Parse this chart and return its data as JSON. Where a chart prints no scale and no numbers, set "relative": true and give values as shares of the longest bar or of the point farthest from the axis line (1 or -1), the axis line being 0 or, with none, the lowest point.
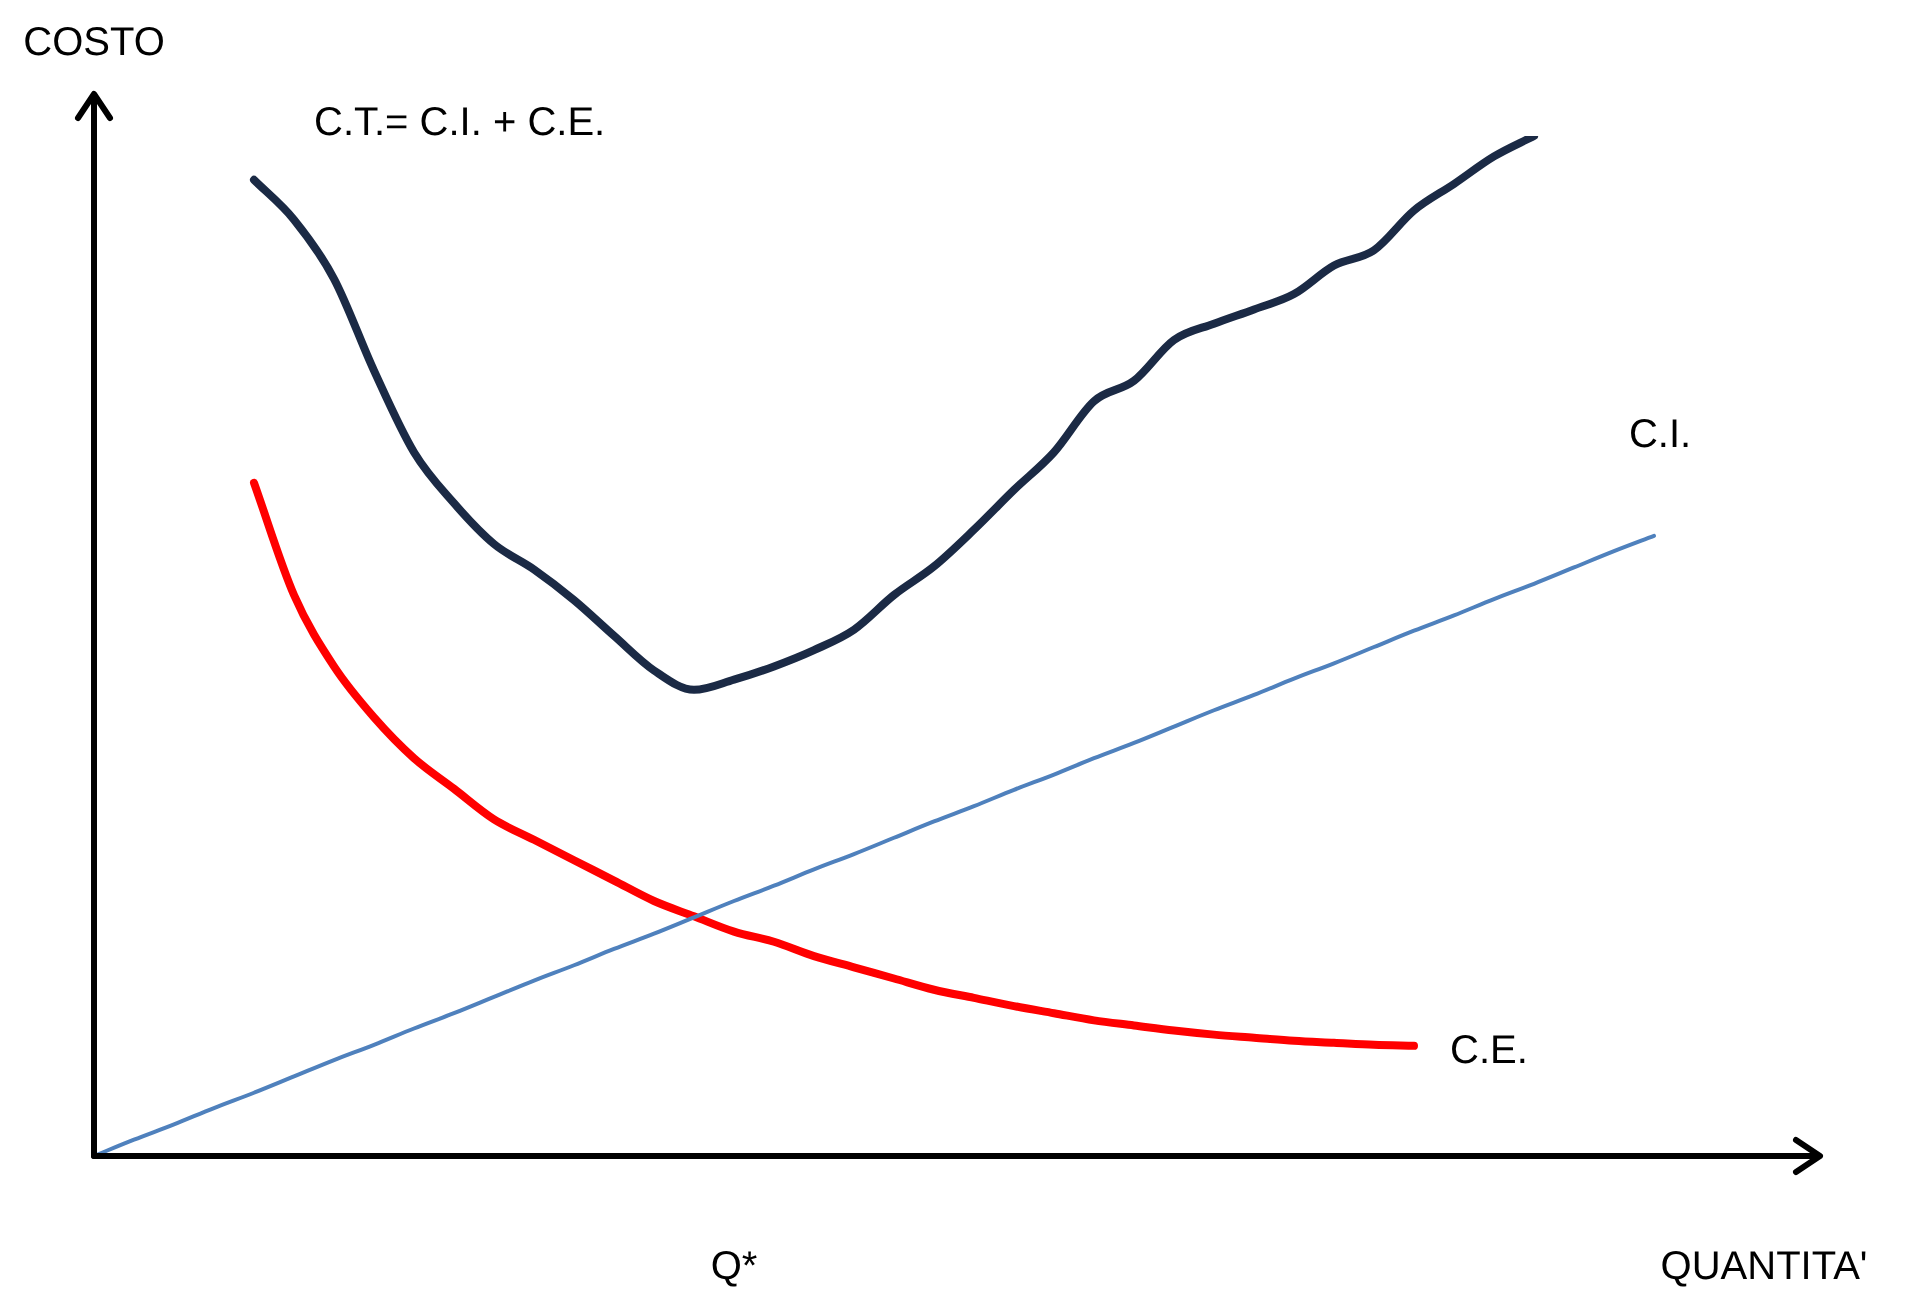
{
  "chart_data": {
    "type": "line",
    "relative": true,
    "xlabel": "QUANTITA'",
    "ylabel": "COSTO",
    "tick_labels": false,
    "marker": "none",
    "annotations": [
      "Q*"
    ],
    "categories": [
      null,
      null,
      null,
      null,
      null,
      null,
      null,
      null,
      null,
      null,
      null,
      null,
      null,
      null,
      null,
      null,
      null,
      null,
      null,
      null,
      null,
      null,
      null,
      null,
      null,
      null,
      null,
      null,
      null,
      null,
      null,
      null,
      null,
      null,
      null,
      null,
      null,
      null,
      null,
      null,
      null,
      null,
      null,
      null
    ],
    "series": [
      {
        "name": "C.I.",
        "color": "#4f81bd",
        "values": [
          0,
          0.016,
          0.031,
          0.047,
          0.062,
          0.078,
          0.094,
          0.109,
          0.125,
          0.14,
          0.156,
          0.172,
          0.187,
          0.203,
          0.218,
          0.234,
          0.25,
          0.265,
          0.281,
          0.296,
          0.312,
          0.328,
          0.343,
          0.359,
          0.374,
          0.39,
          0.405,
          0.421,
          0.437,
          0.452,
          0.468,
          0.483,
          0.499,
          0.515,
          0.53,
          0.546,
          0.561,
          0.577,
          0.593,
          0.608,
          null,
          null,
          null,
          null
        ]
      },
      {
        "name": "C.E.",
        "color": "#ff0000",
        "values": [
          null,
          null,
          null,
          null,
          0.66,
          0.55,
          0.48,
          0.43,
          0.39,
          0.36,
          0.33,
          0.31,
          0.29,
          0.27,
          0.25,
          0.235,
          0.22,
          0.21,
          0.196,
          0.185,
          0.174,
          0.163,
          0.155,
          0.147,
          0.14,
          0.133,
          0.128,
          0.123,
          0.119,
          0.116,
          0.113,
          0.111,
          0.109,
          0.108,
          null,
          null,
          null,
          null,
          null,
          null,
          null,
          null,
          null,
          null
        ]
      },
      {
        "name": "C.T.= C.I. + C.E.",
        "color": "#1b2a45",
        "values": [
          null,
          null,
          null,
          null,
          0.957,
          0.918,
          0.86,
          0.77,
          0.69,
          0.64,
          0.6,
          0.575,
          0.545,
          0.51,
          0.476,
          0.457,
          0.467,
          0.48,
          0.496,
          0.516,
          0.55,
          0.578,
          0.614,
          0.653,
          0.69,
          0.74,
          0.76,
          0.8,
          0.816,
          0.83,
          0.845,
          0.873,
          0.888,
          0.927,
          0.953,
          0.98,
          1,
          null,
          null,
          null,
          null,
          null,
          null,
          null
        ]
      }
    ]
  }
}
